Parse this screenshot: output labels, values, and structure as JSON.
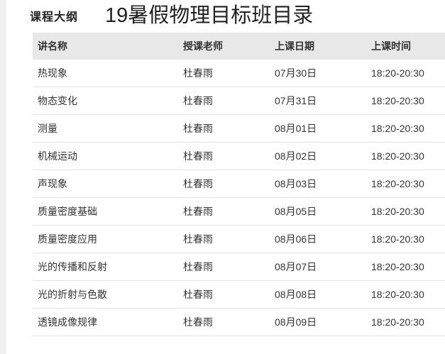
{
  "page": {
    "section_label": "课程大纲",
    "title": "19暑假物理目标班目录"
  },
  "table": {
    "columns": [
      "讲名称",
      "授课老师",
      "上课日期",
      "上课时间"
    ],
    "rows": [
      {
        "name": "热现象",
        "teacher": "杜春雨",
        "date": "07月30日",
        "time": "18:20-20:30"
      },
      {
        "name": "物态变化",
        "teacher": "杜春雨",
        "date": "07月31日",
        "time": "18:20-20:30"
      },
      {
        "name": "测量",
        "teacher": "杜春雨",
        "date": "08月01日",
        "time": "18:20-20:30"
      },
      {
        "name": "机械运动",
        "teacher": "杜春雨",
        "date": "08月02日",
        "time": "18:20-20:30"
      },
      {
        "name": "声现象",
        "teacher": "杜春雨",
        "date": "08月03日",
        "time": "18:20-20:30"
      },
      {
        "name": "质量密度基础",
        "teacher": "杜春雨",
        "date": "08月05日",
        "time": "18:20-20:30"
      },
      {
        "name": "质量密度应用",
        "teacher": "杜春雨",
        "date": "08月06日",
        "time": "18:20-20:30"
      },
      {
        "name": "光的传播和反射",
        "teacher": "杜春雨",
        "date": "08月07日",
        "time": "18:20-20:30"
      },
      {
        "name": "光的折射与色散",
        "teacher": "杜春雨",
        "date": "08月08日",
        "time": "18:20-20:30"
      },
      {
        "name": "透镜成像规律",
        "teacher": "杜春雨",
        "date": "08月09日",
        "time": "18:20-20:30"
      }
    ]
  },
  "colors": {
    "header_bg": "#e8e8e8",
    "row_border": "#e3e3e3",
    "text": "#333333",
    "gutter_bg": "#f0f0f0"
  }
}
